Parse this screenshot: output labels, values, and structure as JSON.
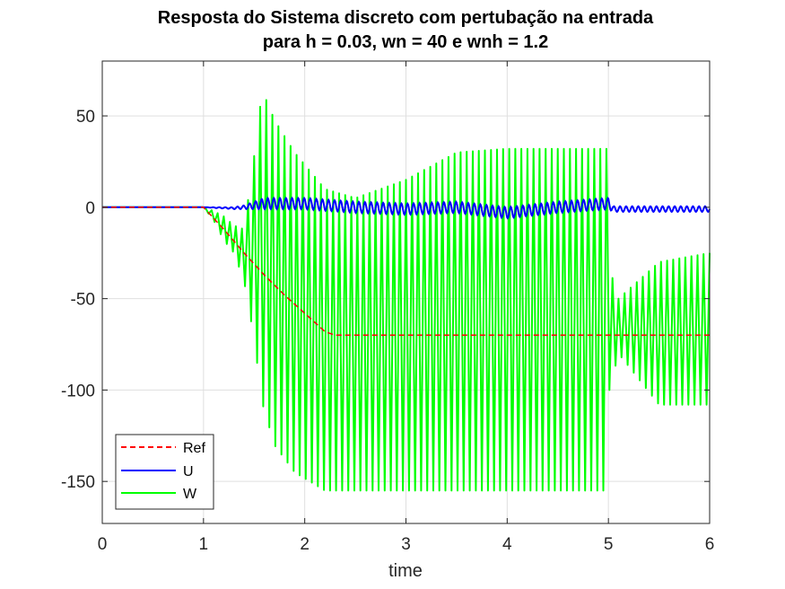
{
  "chart_data": {
    "type": "line",
    "title": [
      "Resposta do Sistema discreto com pertubação na entrada",
      "para h = 0.03, wn = 40 e wnh = 1.2"
    ],
    "xlabel": "time",
    "ylabel": "",
    "xlim": [
      0,
      6
    ],
    "ylim": [
      -173,
      80
    ],
    "xticks": [
      0,
      1,
      2,
      3,
      4,
      5,
      6
    ],
    "yticks": [
      50,
      0,
      -50,
      -100,
      -150
    ],
    "grid": true,
    "legend": {
      "position": "bottom-left",
      "entries": [
        "Ref",
        "U",
        "W"
      ]
    },
    "series": [
      {
        "name": "Ref",
        "color": "#ff0000",
        "style": "dashed",
        "x": [
          0,
          1,
          1.2,
          1.4,
          1.6,
          1.8,
          2.0,
          2.2,
          2.3,
          6
        ],
        "y": [
          0,
          0,
          -12,
          -25,
          -37,
          -48,
          -58,
          -68,
          -70,
          -70
        ]
      },
      {
        "name": "U",
        "color": "#0000ff",
        "style": "solid",
        "x": [
          0,
          1,
          1.3,
          1.4,
          1.5,
          1.6,
          2.0,
          2.5,
          3.0,
          3.5,
          4.0,
          4.5,
          5.0,
          5.05,
          5.5,
          6.0
        ],
        "y": [
          0,
          0,
          -0.5,
          0,
          1,
          2,
          2,
          0,
          -1,
          0,
          -3,
          0,
          2,
          -1,
          -1,
          -1
        ],
        "oscillation": {
          "amplitude": [
            0,
            0,
            0.5,
            1,
            2,
            3,
            3,
            3,
            3,
            3,
            3,
            3,
            3,
            1.5,
            1.5,
            1.5
          ]
        }
      },
      {
        "name": "W",
        "color": "#00ff00",
        "style": "solid",
        "x": [
          0,
          1,
          1.1,
          1.2,
          1.3,
          1.4,
          1.5,
          1.58,
          1.7,
          1.9,
          2.2,
          2.5,
          3.0,
          3.5,
          4.0,
          4.5,
          4.99,
          5.01,
          5.1,
          5.5,
          6.0
        ],
        "upper": [
          0,
          0,
          -2,
          -5,
          -10,
          -12,
          28,
          64,
          48,
          30,
          10,
          5,
          15,
          30,
          32,
          32,
          32,
          -33,
          -50,
          -30,
          -25
        ],
        "lower": [
          0,
          0,
          -7,
          -18,
          -25,
          -40,
          -72,
          -107,
          -130,
          -145,
          -155,
          -155,
          -155,
          -155,
          -155,
          -155,
          -155,
          -100,
          -80,
          -108,
          -108
        ]
      }
    ]
  }
}
